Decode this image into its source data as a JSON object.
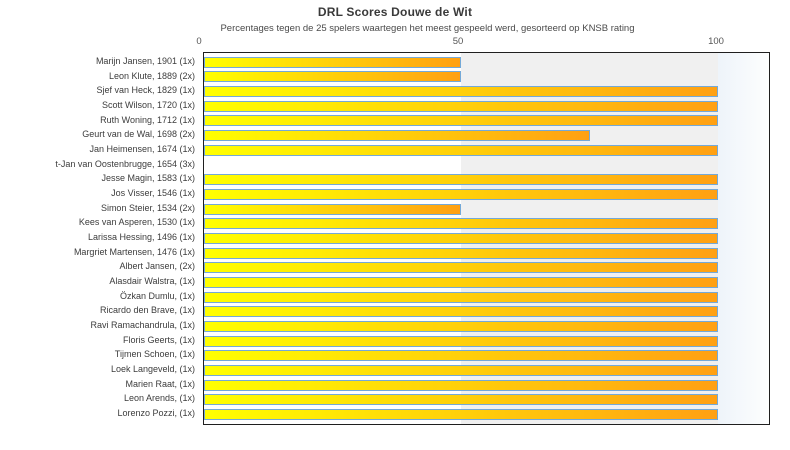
{
  "title": "DRL Scores Douwe de Wit",
  "subtitle": "Percentages tegen de 25 spelers waartegen het meest gespeeld werd, gesorteerd op KNSB rating",
  "chart_data": {
    "type": "bar",
    "orientation": "horizontal",
    "title": "DRL Scores Douwe de Wit",
    "subtitle": "Percentages tegen de 25 spelers waartegen het meest gespeeld werd, gesorteerd op KNSB rating",
    "xlabel": "",
    "ylabel": "",
    "xlim": [
      0,
      110
    ],
    "x_ticks": [
      "0",
      "50",
      "100"
    ],
    "grid": false,
    "legend": "none",
    "categories": [
      "Marijn Jansen, 1901 (1x)",
      "Leon Klute, 1889 (2x)",
      "Sjef van Heck, 1829 (1x)",
      "Scott Wilson, 1720 (1x)",
      "Ruth Woning, 1712 (1x)",
      "Geurt van de Wal, 1698 (2x)",
      "Jan Heimensen, 1674 (1x)",
      "t-Jan van Oostenbrugge, 1654 (3x)",
      "Jesse Magin, 1583 (1x)",
      "Jos Visser, 1546 (1x)",
      "Simon Steier, 1534 (2x)",
      "Kees van Asperen, 1530 (1x)",
      "Larissa Hessing, 1496 (1x)",
      "Margriet Martensen, 1476 (1x)",
      "Albert Jansen,  (2x)",
      "Alasdair Walstra,  (1x)",
      "Özkan Dumlu,  (1x)",
      "Ricardo den Brave,  (1x)",
      "Ravi Ramachandrula,  (1x)",
      "Floris Geerts,  (1x)",
      "Tijmen Schoen,  (1x)",
      "Loek Langeveld,  (1x)",
      "Marien Raat,  (1x)",
      "Leon Arends,  (1x)",
      "Lorenzo Pozzi,  (1x)"
    ],
    "values": [
      50,
      50,
      100,
      100,
      100,
      75,
      100,
      0,
      100,
      100,
      50,
      100,
      100,
      100,
      100,
      100,
      100,
      100,
      100,
      100,
      100,
      100,
      100,
      100,
      100
    ],
    "colors": {
      "bar_gradient_start": "#ffff00",
      "bar_gradient_end": "#ffa013",
      "bar_border": "#74a9d8",
      "band_0_50": "#ffffff",
      "band_50_100": "#f0f0f0",
      "band_beyond_100_start": "#eef4fa",
      "band_beyond_100_end": "#fdfefe",
      "plot_border": "#1f1f1f",
      "title_color": "#3a3a3a"
    }
  }
}
